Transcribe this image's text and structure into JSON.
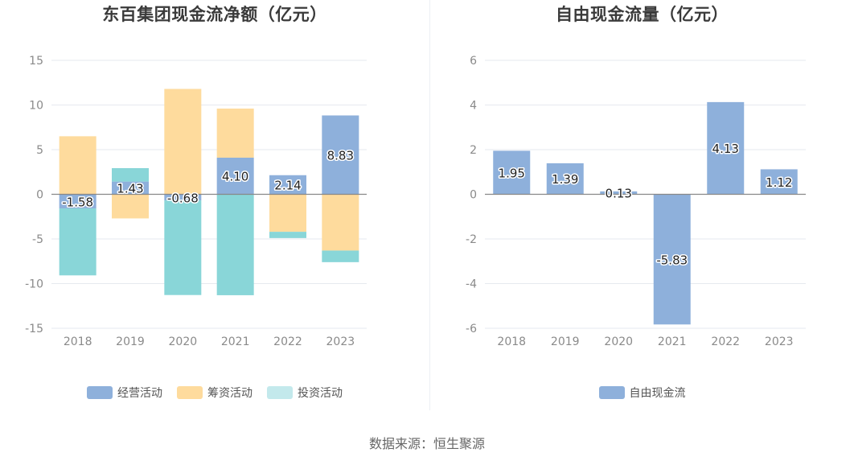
{
  "source": "数据来源：恒生聚源",
  "chart_data": [
    {
      "type": "bar",
      "stacked": true,
      "title": "东百集团现金流净额（亿元）",
      "categories": [
        "2018",
        "2019",
        "2020",
        "2021",
        "2022",
        "2023"
      ],
      "ylim": [
        -15,
        15
      ],
      "yticks": [
        15,
        10,
        5,
        0,
        -5,
        -10,
        -15
      ],
      "grid": true,
      "legend_position": "bottom",
      "series": [
        {
          "name": "经营活动",
          "color": "#8eb0db",
          "values": [
            -1.58,
            1.43,
            -0.68,
            4.1,
            2.14,
            8.83
          ],
          "show_labels": true
        },
        {
          "name": "筹资活动",
          "color": "#fedb9d",
          "values": [
            6.5,
            -2.7,
            11.8,
            5.5,
            -4.2,
            -6.3
          ],
          "show_labels": false
        },
        {
          "name": "投资活动",
          "color": "#89d6d8",
          "values": [
            -7.5,
            1.5,
            -10.6,
            -11.3,
            -0.7,
            -1.3
          ],
          "show_labels": false
        }
      ],
      "legend": [
        {
          "name": "经营活动",
          "color": "#8eb0db"
        },
        {
          "name": "筹资活动",
          "color": "#fedb9d"
        },
        {
          "name": "投资活动",
          "color": "#c3e9ec"
        }
      ]
    },
    {
      "type": "bar",
      "title": "自由现金流量（亿元）",
      "categories": [
        "2018",
        "2019",
        "2020",
        "2021",
        "2022",
        "2023"
      ],
      "ylim": [
        -6,
        6
      ],
      "yticks": [
        6,
        4,
        2,
        0,
        -2,
        -4,
        -6
      ],
      "grid": true,
      "legend_position": "bottom",
      "series": [
        {
          "name": "自由现金流",
          "color": "#8eb0db",
          "values": [
            1.95,
            1.39,
            0.13,
            -5.83,
            4.13,
            1.12
          ],
          "show_labels": true
        }
      ],
      "legend": [
        {
          "name": "自由现金流",
          "color": "#8eb0db"
        }
      ]
    }
  ]
}
